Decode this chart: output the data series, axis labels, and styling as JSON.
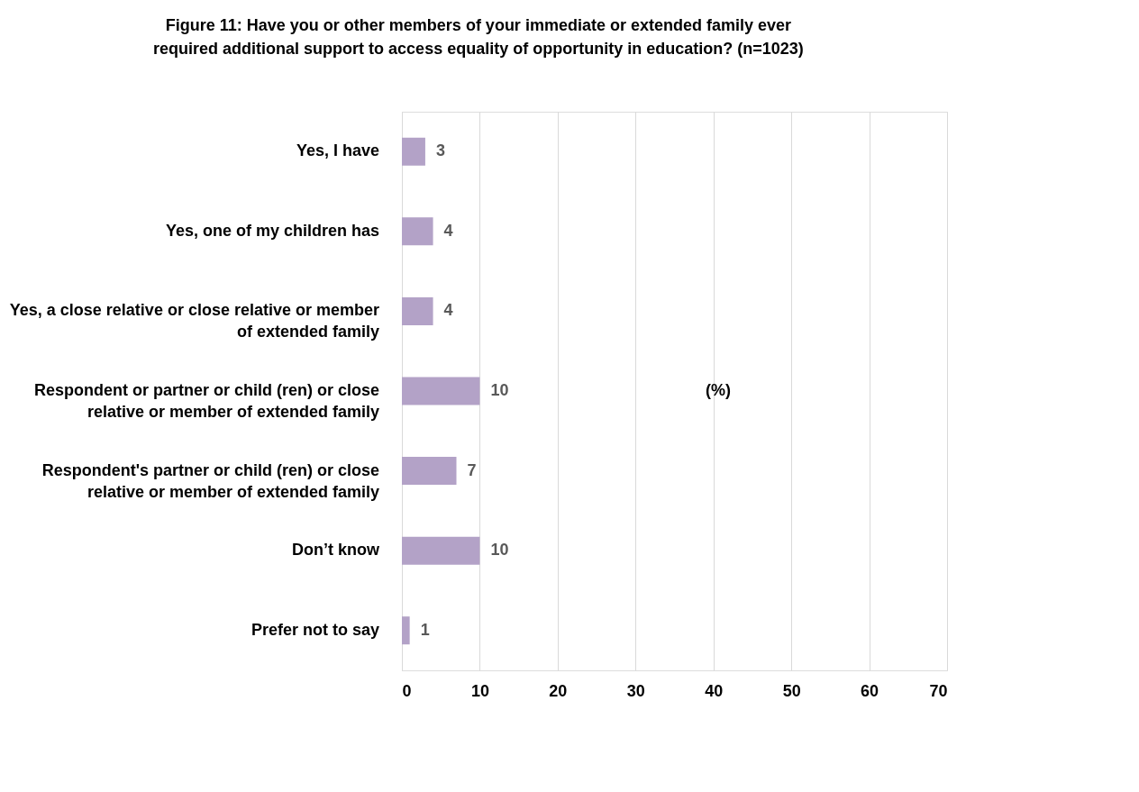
{
  "chart_data": {
    "type": "bar",
    "orientation": "horizontal",
    "title": "Figure 11: Have you or other members of your immediate or extended family ever required additional support to access equality of opportunity in education? (n=1023)",
    "categories": [
      "Yes, I have",
      "Yes, one of my children has",
      "Yes, a close relative or close relative or member of extended family",
      "Respondent or partner or child (ren) or close relative or member of extended family",
      "Respondent's partner or child (ren) or close relative or member of extended family",
      "Don’t know",
      "Prefer not to say"
    ],
    "values": [
      3,
      4,
      4,
      10,
      7,
      10,
      1
    ],
    "color": "#b3a2c7",
    "xlim": [
      0,
      70
    ],
    "xticks": [
      0,
      10,
      20,
      30,
      40,
      50,
      60,
      70
    ],
    "grid": "x",
    "data_labels": true,
    "annotations": [
      "(%)"
    ]
  }
}
